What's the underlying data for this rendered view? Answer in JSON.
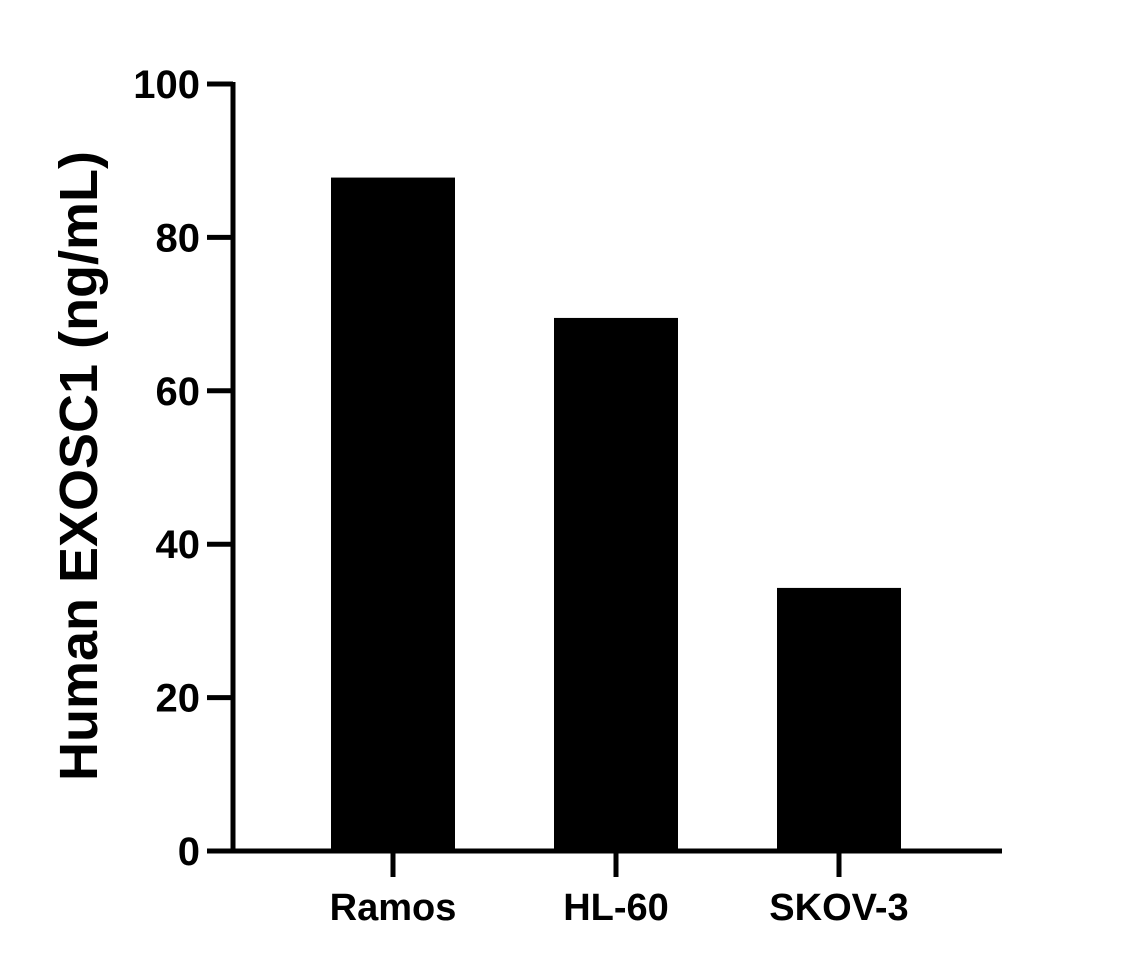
{
  "chart_data": {
    "type": "bar",
    "categories": [
      "Ramos",
      "HL-60",
      "SKOV-3"
    ],
    "values": [
      87.8,
      69.5,
      34.3
    ],
    "ylabel": "Human EXOSC1 (ng/mL)",
    "xlabel": "",
    "ylim": [
      0,
      100
    ],
    "yticks": [
      0,
      20,
      40,
      60,
      80,
      100
    ],
    "ytick_labels": [
      "0",
      "20",
      "40",
      "60",
      "80",
      "100"
    ],
    "bar_color": "#000000",
    "grid": false,
    "legend": "none"
  }
}
